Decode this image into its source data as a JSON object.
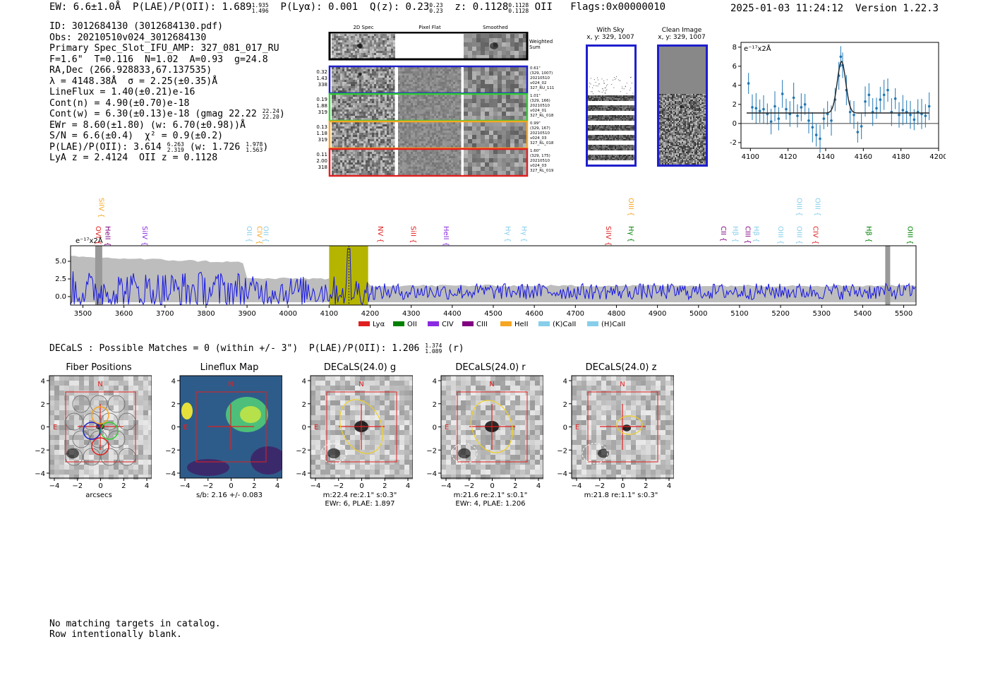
{
  "header": {
    "ew": "EW: 6.6±1.0Å",
    "plae_label": "P(LAE)/P(OII): 1.689",
    "plae_hi": "1.935",
    "plae_lo": "1.496",
    "plya": "P(Lyα): 0.001",
    "q_label": "Q(z): 0.23",
    "q_hi": "0.23",
    "q_lo": "0.23",
    "z_label": "z: 0.1128",
    "z_hi": "0.1128",
    "z_lo": "0.1128",
    "z_line": "OII",
    "flags": "Flags:0x00000010",
    "timestamp": "2025-01-03 11:24:12",
    "version": "Version 1.22.3"
  },
  "info": {
    "id": "ID: 3012684130 (3012684130.pdf)",
    "obs": "Obs: 20210510v024_3012684130",
    "primary": "Primary Spec_Slot_IFU_AMP: 327_081_017_RU",
    "params": "F=1.6\"  T=0.116  N=1.02  A=0.93  g=24.8",
    "radec": "RA,Dec (266.928833,67.137535)",
    "lambda": "λ = 4148.38Å  σ = 2.25(±0.35)Å",
    "lineflux": "LineFlux = 1.40(±0.21)e-16",
    "contn": "Cont(n) = 4.90(±0.70)e-18",
    "contw": "Cont(w) = 6.30(±0.13)e-18 (gmag 22.22",
    "contw_hi": "22.24",
    "contw_lo": "22.20",
    "contw_end": ")",
    "ewr": "EWr = 8.60(±1.80) (w: 6.70(±0.98))Å",
    "sn": "S/N = 6.6(±0.4)  χ² = 0.9(±0.2)",
    "plae": "P(LAE)/P(OII): 3.614",
    "plae_hi": "6.263",
    "plae_lo": "2.319",
    "plae_w": "(w: 1.726",
    "plae_w_hi": "1.978",
    "plae_w_lo": "1.563",
    "plae_w_end": ")",
    "lya": "LyA z = 2.4124  OII z = 0.1128"
  },
  "cutouts": {
    "col_2d": "2D Spec",
    "col_flat": "Pixel Flat",
    "col_smooth": "Smoothed",
    "weighted": "Weighted Sum",
    "rows": [
      {
        "stats": [
          "0.32",
          "1.43",
          "338"
        ],
        "meta": [
          "0.61\"",
          "(329, 1007)",
          "20210510",
          "v024_02",
          "327_RU_111"
        ],
        "color": "#1f1fcc"
      },
      {
        "stats": [
          "0.19",
          "1.88",
          "319"
        ],
        "meta": [
          "1.01\"",
          "(329, 166)",
          "20210510",
          "v024_01",
          "327_RL_018"
        ],
        "color": "#33cc33"
      },
      {
        "stats": [
          "0.13",
          "1.18",
          "319"
        ],
        "meta": [
          "0.99\"",
          "(329, 167)",
          "20210510",
          "v024_03",
          "327_RL_018"
        ],
        "color": "#f5a623"
      },
      {
        "stats": [
          "0.11",
          "2.00",
          "318"
        ],
        "meta": [
          "1.60\"",
          "(329, 175)",
          "20210510",
          "v024_03",
          "327_RL_019"
        ],
        "color": "#e02020"
      }
    ]
  },
  "sky_panels": {
    "with_sky": "With Sky",
    "with_sky_xy": "x, y: 329, 1007",
    "clean": "Clean Image",
    "clean_xy": "x, y: 329, 1007"
  },
  "chart_data": [
    {
      "type": "scatter",
      "title": "",
      "ylabel": "e⁻¹⁷x2Å",
      "xlim": [
        4095,
        4200
      ],
      "ylim": [
        -2.6,
        8.5
      ],
      "x_ticks": [
        "4100",
        "4120",
        "4140",
        "4160",
        "4180",
        "4200"
      ],
      "y_ticks": [
        "-2",
        "0",
        "2",
        "4",
        "6",
        "8"
      ],
      "x": [
        4099,
        4101,
        4103,
        4105,
        4107,
        4109,
        4111,
        4113,
        4115,
        4117,
        4119,
        4121,
        4123,
        4125,
        4127,
        4129,
        4131,
        4133,
        4135,
        4137,
        4139,
        4141,
        4143,
        4145,
        4147,
        4148,
        4149,
        4151,
        4153,
        4155,
        4157,
        4159,
        4161,
        4163,
        4165,
        4167,
        4169,
        4171,
        4173,
        4175,
        4177,
        4179,
        4181,
        4183,
        4185,
        4187,
        4189,
        4191,
        4193,
        4195
      ],
      "y": [
        4.2,
        1.7,
        1.6,
        1.3,
        1.5,
        1.0,
        0.2,
        1.8,
        0.5,
        3.1,
        1.5,
        1.0,
        2.7,
        0.8,
        1.7,
        2.0,
        0.3,
        -0.4,
        -1.2,
        -1.6,
        0.5,
        1.0,
        0.3,
        2.5,
        5.0,
        7.0,
        6.1,
        3.5,
        1.2,
        0.9,
        -0.9,
        -0.3,
        2.3,
        3.0,
        1.2,
        1.6,
        2.5,
        3.0,
        3.5,
        1.2,
        2.6,
        0.9,
        1.4,
        1.2,
        0.9,
        0.4,
        1.2,
        1.0,
        0.8,
        1.8
      ],
      "fit_label": "gaussian fit"
    },
    {
      "type": "line",
      "ylabel": "e⁻¹⁷x2Å",
      "xlim": [
        3470,
        5530
      ],
      "ylim": [
        -1.2,
        7.2
      ],
      "x_ticks": [
        "3500",
        "3600",
        "3700",
        "3800",
        "3900",
        "4000",
        "4100",
        "4200",
        "4300",
        "4400",
        "4500",
        "4600",
        "4700",
        "4800",
        "4900",
        "5000",
        "5100",
        "5200",
        "5300",
        "5400",
        "5500"
      ],
      "y_ticks": [
        "0.0",
        "2.5",
        "5.0"
      ],
      "highlight_range": [
        4100,
        4195
      ],
      "line_markers": [
        {
          "name": "SiIV",
          "x": 3540,
          "row": 0,
          "color": "#f5a623"
        },
        {
          "name": "OVI",
          "x": 3532,
          "row": 1,
          "color": "#e02020"
        },
        {
          "name": "HeII",
          "x": 3555,
          "row": 1,
          "color": "#800080"
        },
        {
          "name": "SiIV",
          "x": 3645,
          "row": 1,
          "color": "#8a2be2"
        },
        {
          "name": "OII",
          "x": 3900,
          "row": 1,
          "color": "#87ceeb"
        },
        {
          "name": "CIV",
          "x": 3925,
          "row": 1,
          "color": "#f5a623"
        },
        {
          "name": "OII",
          "x": 3940,
          "row": 1,
          "color": "#87ceeb"
        },
        {
          "name": "NV",
          "x": 4220,
          "row": 1,
          "color": "#e02020"
        },
        {
          "name": "SiII",
          "x": 4300,
          "row": 1,
          "color": "#e02020"
        },
        {
          "name": "HeII",
          "x": 4380,
          "row": 1,
          "color": "#8a2be2"
        },
        {
          "name": "Hγ",
          "x": 4530,
          "row": 1,
          "color": "#87ceeb"
        },
        {
          "name": "Hγ",
          "x": 4570,
          "row": 1,
          "color": "#87ceeb"
        },
        {
          "name": "OIII",
          "x": 4830,
          "row": 0,
          "color": "#f5a623"
        },
        {
          "name": "SiIV",
          "x": 4775,
          "row": 1,
          "color": "#e02020"
        },
        {
          "name": "Hγ",
          "x": 4830,
          "row": 1,
          "color": "#008000"
        },
        {
          "name": "CII",
          "x": 5055,
          "row": 1,
          "color": "#800080"
        },
        {
          "name": "Hβ",
          "x": 5085,
          "row": 1,
          "color": "#87ceeb"
        },
        {
          "name": "CIII",
          "x": 5115,
          "row": 1,
          "color": "#800080"
        },
        {
          "name": "Hβ",
          "x": 5135,
          "row": 1,
          "color": "#87ceeb"
        },
        {
          "name": "OIII",
          "x": 5195,
          "row": 1,
          "color": "#87ceeb"
        },
        {
          "name": "OIII",
          "x": 5240,
          "row": 0,
          "color": "#87ceeb"
        },
        {
          "name": "OIII",
          "x": 5240,
          "row": 1,
          "color": "#87ceeb"
        },
        {
          "name": "OIII",
          "x": 5285,
          "row": 0,
          "color": "#87ceeb"
        },
        {
          "name": "CIV",
          "x": 5280,
          "row": 1,
          "color": "#e02020"
        },
        {
          "name": "Hβ",
          "x": 5410,
          "row": 1,
          "color": "#008000"
        },
        {
          "name": "OIII",
          "x": 5510,
          "row": 1,
          "color": "#008000"
        }
      ],
      "legend": [
        {
          "label": "Lyα",
          "color": "#e02020"
        },
        {
          "label": "OII",
          "color": "#008000"
        },
        {
          "label": "CIV",
          "color": "#8a2be2"
        },
        {
          "label": "CIII",
          "color": "#800080"
        },
        {
          "label": "HeII",
          "color": "#f5a623"
        },
        {
          "label": "(K)CaII",
          "color": "#87ceeb"
        },
        {
          "label": "(H)CaII",
          "color": "#87ceeb"
        }
      ]
    }
  ],
  "decals": {
    "summary": "DECaLS : Possible Matches = 0 (within +/- 3\")  P(LAE)/P(OII): 1.206",
    "summary_hi": "1.374",
    "summary_lo": "1.089",
    "summary_end": "(r)",
    "panels": [
      {
        "title": "Fiber Positions",
        "cap1": "arcsecs",
        "cap2": ""
      },
      {
        "title": "Lineflux Map",
        "cap1": "s/b: 2.16 +/- 0.083",
        "cap2": ""
      },
      {
        "title": "DECaLS(24.0) g",
        "cap1": "m:22.4  re:2.1\"  s:0.3\"",
        "cap2": "EWr: 6, PLAE: 1.897"
      },
      {
        "title": "DECaLS(24.0) r",
        "cap1": "m:21.6  re:2.1\"  s:0.1\"",
        "cap2": "EWr: 4, PLAE: 1.206"
      },
      {
        "title": "DECaLS(24.0) z",
        "cap1": "m:21.8  re:1.1\"  s:0.3\"",
        "cap2": ""
      }
    ],
    "ticks": [
      "−4",
      "−2",
      "0",
      "2",
      "4"
    ],
    "north": "N",
    "east": "E"
  },
  "footer": {
    "line1": "No matching targets in catalog.",
    "line2": "Row intentionally blank."
  }
}
